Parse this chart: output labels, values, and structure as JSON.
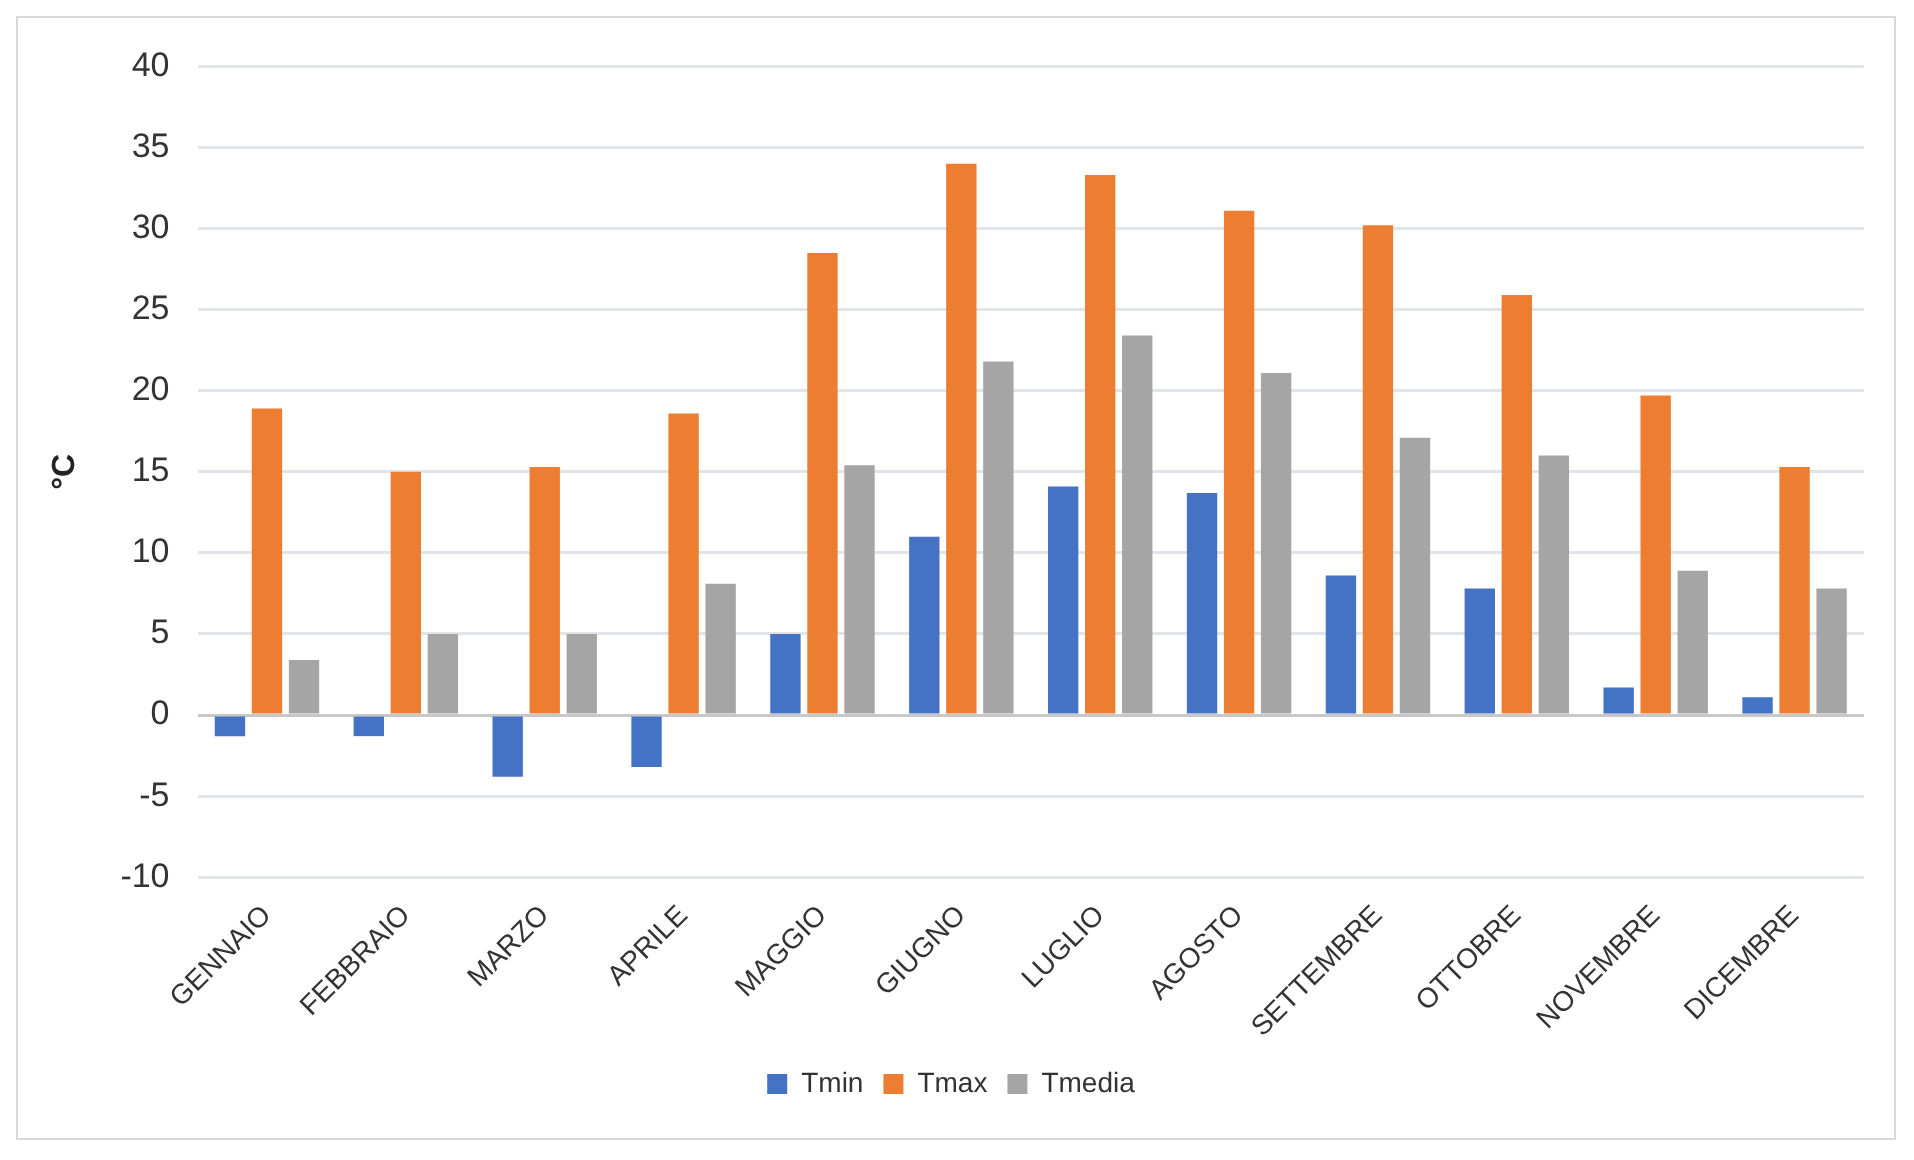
{
  "chart_data": {
    "type": "bar",
    "ylabel": "°C",
    "categories": [
      "GENNAIO",
      "FEBBRAIO",
      "MARZO",
      "APRILE",
      "MAGGIO",
      "GIUGNO",
      "LUGLIO",
      "AGOSTO",
      "SETTEMBRE",
      "OTTOBRE",
      "NOVEMBRE",
      "DICEMBRE"
    ],
    "series": [
      {
        "name": "Tmin",
        "color": "#4472c4",
        "values": [
          -1.3,
          -1.3,
          -3.8,
          -3.2,
          5.0,
          11.0,
          14.1,
          13.7,
          8.6,
          7.8,
          1.7,
          1.1
        ]
      },
      {
        "name": "Tmax",
        "color": "#ed7d31",
        "values": [
          18.9,
          15.0,
          15.3,
          18.6,
          28.5,
          34.0,
          33.3,
          31.1,
          30.2,
          25.9,
          19.7,
          15.3
        ]
      },
      {
        "name": "Tmedia",
        "color": "#a5a5a5",
        "values": [
          3.4,
          5.0,
          5.0,
          8.1,
          15.4,
          21.8,
          23.4,
          21.1,
          17.1,
          16.0,
          8.9,
          7.8
        ]
      }
    ],
    "ylim": [
      -10,
      40
    ],
    "yticks": [
      -10,
      -5,
      0,
      5,
      10,
      15,
      20,
      25,
      30,
      35,
      40
    ],
    "grid": "y",
    "legend": "bottom"
  }
}
